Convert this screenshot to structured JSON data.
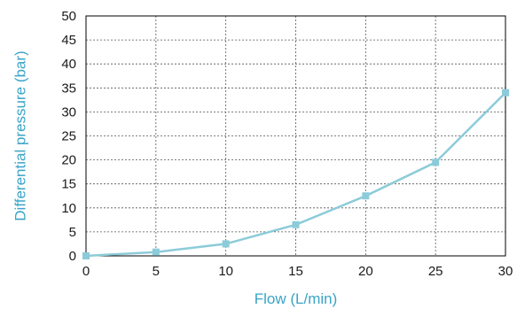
{
  "chart_data": {
    "type": "line",
    "title": "",
    "xlabel": "Flow (L/min)",
    "ylabel": "Differential pressure (bar)",
    "x": [
      0,
      5,
      10,
      15,
      20,
      25,
      30
    ],
    "series": [
      {
        "values": [
          0,
          0.8,
          2.5,
          6.5,
          12.5,
          19.5,
          34
        ]
      }
    ],
    "xlim": [
      0,
      30
    ],
    "ylim": [
      0,
      50
    ],
    "xticks": [
      "0",
      "5",
      "10",
      "15",
      "20",
      "25",
      "30"
    ],
    "yticks": [
      "0",
      "5",
      "10",
      "15",
      "20",
      "25",
      "30",
      "35",
      "40",
      "45",
      "50"
    ],
    "grid": true,
    "legend": "none",
    "colors": {
      "series": "#8ccbd9",
      "axis_title": "#3aa4c7",
      "grid": "#555555",
      "frame": "#000000"
    }
  }
}
